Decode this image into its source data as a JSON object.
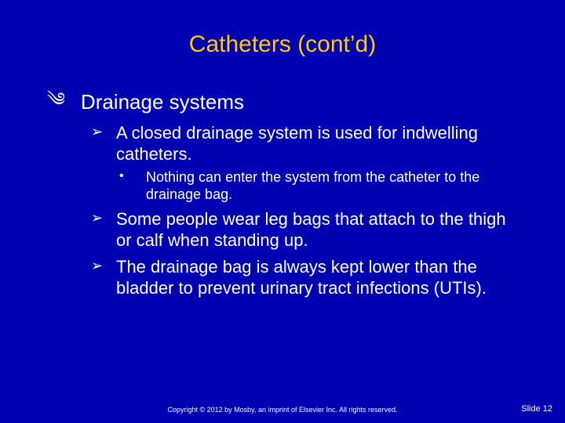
{
  "colors": {
    "background": "#0000b3",
    "title": "#ffcc00",
    "body_text": "#ffffff",
    "footer_text": "#ffffff"
  },
  "typography": {
    "title_fontsize": 30,
    "lvl1_fontsize": 26,
    "lvl2_fontsize": 22,
    "lvl3_fontsize": 18,
    "footer_fontsize": 9,
    "slide_num_fontsize": 11,
    "font_family": "Arial"
  },
  "title": "Catheters (cont’d)",
  "bullets": {
    "lvl1": {
      "marker": "༄",
      "text": "Drainage systems"
    },
    "lvl2": [
      {
        "marker": "➢",
        "text": "A closed drainage system is used for indwelling catheters.",
        "children": [
          {
            "marker": "•",
            "text": "Nothing can enter the system from the catheter to the drainage bag."
          }
        ]
      },
      {
        "marker": "➢",
        "text": "Some people wear leg bags that attach to the thigh or calf when standing up.",
        "children": []
      },
      {
        "marker": "➢",
        "text": "The drainage bag is always kept lower than the bladder to prevent urinary tract infections (UTIs).",
        "children": []
      }
    ]
  },
  "footer": {
    "copyright": "Copyright © 2012 by Mosby, an imprint of Elsevier Inc. All rights reserved.",
    "slide_number": "Slide 12"
  }
}
